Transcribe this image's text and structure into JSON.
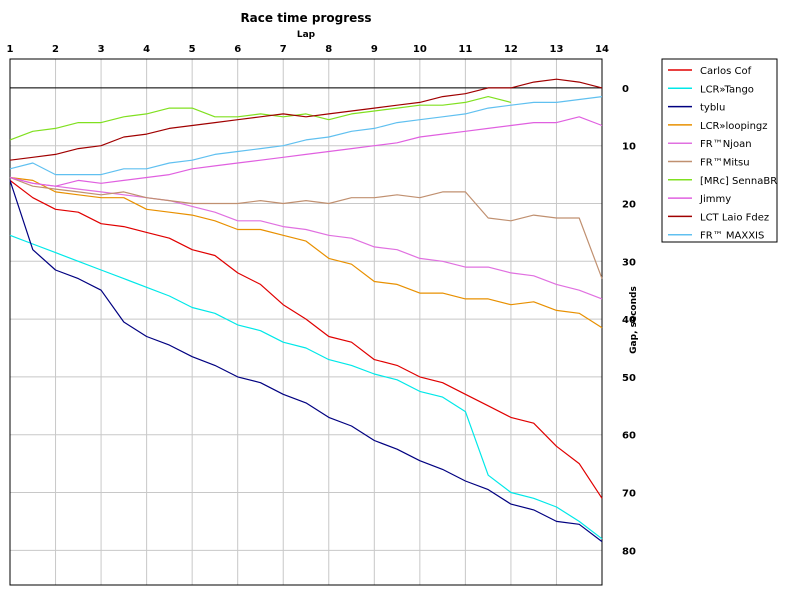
{
  "chart_data": {
    "type": "line",
    "title": "Race time progress",
    "xlabel": "Lap",
    "ylabel": "Gap, seconds",
    "xlim": [
      1,
      14
    ],
    "ylim": [
      -5,
      86
    ],
    "y_inverted": true,
    "x_ticks": [
      "1",
      "2",
      "3",
      "4",
      "5",
      "6",
      "7",
      "8",
      "9",
      "10",
      "11",
      "12",
      "13",
      "14"
    ],
    "y_ticks": [
      "0",
      "10",
      "20",
      "30",
      "40",
      "50",
      "60",
      "70",
      "80"
    ],
    "grid": true,
    "legend_position": "right",
    "series": [
      {
        "name": "Carlos Cof",
        "color": "#e00000",
        "x": [
          1,
          1.5,
          2,
          2.5,
          3,
          3.5,
          4,
          4.5,
          5,
          5.5,
          6,
          6.5,
          7,
          7.5,
          8,
          8.5,
          9,
          9.5,
          10,
          10.5,
          11,
          11.5,
          12,
          12.5,
          13,
          13.5,
          14
        ],
        "y": [
          16,
          19,
          21,
          21.5,
          23.5,
          24,
          25,
          26,
          28,
          29,
          32,
          34,
          37.5,
          40,
          43,
          44,
          47,
          48,
          50,
          51,
          53,
          55,
          57,
          58,
          62,
          65,
          71
        ]
      },
      {
        "name": "LCR»Tango",
        "color": "#00e8e8",
        "x": [
          1,
          1.5,
          2,
          2.5,
          3,
          3.5,
          4,
          4.5,
          5,
          5.5,
          6,
          6.5,
          7,
          7.5,
          8,
          8.5,
          9,
          9.5,
          10,
          10.5,
          11,
          11.5,
          12,
          12.5,
          13,
          13.5,
          14
        ],
        "y": [
          25.5,
          27,
          28.5,
          30,
          31.5,
          33,
          34.5,
          36,
          38,
          39,
          41,
          42,
          44,
          45,
          47,
          48,
          49.5,
          50.5,
          52.5,
          53.5,
          56,
          67,
          70,
          71,
          72.5,
          75,
          78
        ]
      },
      {
        "name": "tyblu",
        "color": "#000080",
        "x": [
          1,
          1.5,
          2,
          2.5,
          3,
          3.5,
          4,
          4.5,
          5,
          5.5,
          6,
          6.5,
          7,
          7.5,
          8,
          8.5,
          9,
          9.5,
          10,
          10.5,
          11,
          11.5,
          12,
          12.5,
          13,
          13.5,
          14
        ],
        "y": [
          16,
          28,
          31.5,
          33,
          35,
          40.5,
          43,
          44.5,
          46.5,
          48,
          50,
          51,
          53,
          54.5,
          57,
          58.5,
          61,
          62.5,
          64.5,
          66,
          68,
          69.5,
          72,
          73,
          75,
          75.5,
          78.5
        ]
      },
      {
        "name": "LCR»loopingz",
        "color": "#e89000",
        "x": [
          1,
          1.5,
          2,
          2.5,
          3,
          3.5,
          4,
          4.5,
          5,
          5.5,
          6,
          6.5,
          7,
          7.5,
          8,
          8.5,
          9,
          9.5,
          10,
          10.5,
          11,
          11.5,
          12,
          12.5,
          13,
          13.5,
          14
        ],
        "y": [
          15.5,
          16,
          18,
          18.5,
          19,
          19,
          21,
          21.5,
          22,
          23,
          24.5,
          24.5,
          25.5,
          26.5,
          29.5,
          30.5,
          33.5,
          34,
          35.5,
          35.5,
          36.5,
          36.5,
          37.5,
          37,
          38.5,
          39,
          41.5
        ]
      },
      {
        "name": "FR™Njoan",
        "color": "#e070e0",
        "x": [
          1,
          1.5,
          2,
          2.5,
          3,
          3.5,
          4,
          4.5,
          5,
          5.5,
          6,
          6.5,
          7,
          7.5,
          8,
          8.5,
          9,
          9.5,
          10,
          10.5,
          11,
          11.5,
          12,
          12.5,
          13,
          13.5,
          14
        ],
        "y": [
          15.5,
          16.5,
          17,
          17.5,
          18,
          18.5,
          19,
          19.5,
          20.5,
          21.5,
          23,
          23,
          24,
          24.5,
          25.5,
          26,
          27.5,
          28,
          29.5,
          30,
          31,
          31,
          32,
          32.5,
          34,
          35,
          36.5
        ]
      },
      {
        "name": "FR™Mitsu",
        "color": "#c09070",
        "x": [
          1,
          1.5,
          2,
          2.5,
          3,
          3.5,
          4,
          4.5,
          5,
          5.5,
          6,
          6.5,
          7,
          7.5,
          8,
          8.5,
          9,
          9.5,
          10,
          10.5,
          11,
          11.5,
          12,
          12.5,
          13,
          13.5,
          14
        ],
        "y": [
          15.5,
          17,
          17.5,
          18,
          18.5,
          18,
          19,
          19.5,
          20,
          20,
          20,
          19.5,
          20,
          19.5,
          20,
          19,
          19,
          18.5,
          19,
          18,
          18,
          22.5,
          23,
          22,
          22.5,
          22.5,
          33
        ]
      },
      {
        "name": "[MRc] SennaBR",
        "color": "#80e020",
        "x": [
          1,
          1.5,
          2,
          2.5,
          3,
          3.5,
          4,
          4.5,
          5,
          5.5,
          6,
          6.5,
          7,
          7.5,
          8,
          8.5,
          9,
          9.5,
          10,
          10.5,
          11,
          11.5,
          12
        ],
        "y": [
          9,
          7.5,
          7,
          6,
          6,
          5,
          4.5,
          3.5,
          3.5,
          5,
          5,
          4.5,
          5,
          4.5,
          5.5,
          4.5,
          4,
          3.5,
          3,
          3,
          2.5,
          1.5,
          2.5
        ]
      },
      {
        "name": "Jimmy",
        "color": "#e060e0",
        "x": [
          1,
          1.5,
          2,
          2.5,
          3,
          3.5,
          4,
          4.5,
          5,
          5.5,
          6,
          6.5,
          7,
          7.5,
          8,
          8.5,
          9,
          9.5,
          10,
          10.5,
          11,
          11.5,
          12,
          12.5,
          13,
          13.5,
          14
        ],
        "y": [
          15.5,
          16.5,
          17,
          16,
          16.5,
          16,
          15.5,
          15,
          14,
          13.5,
          13,
          12.5,
          12,
          11.5,
          11,
          10.5,
          10,
          9.5,
          8.5,
          8,
          7.5,
          7,
          6.5,
          6,
          6,
          5,
          6.5
        ]
      },
      {
        "name": "LCT Laio Fdez",
        "color": "#a00000",
        "x": [
          1,
          1.5,
          2,
          2.5,
          3,
          3.5,
          4,
          4.5,
          5,
          5.5,
          6,
          6.5,
          7,
          7.5,
          8,
          8.5,
          9,
          9.5,
          10,
          10.5,
          11,
          11.5,
          12,
          12.5,
          13,
          13.5,
          14
        ],
        "y": [
          12.5,
          12,
          11.5,
          10.5,
          10,
          8.5,
          8,
          7,
          6.5,
          6,
          5.5,
          5,
          4.5,
          5,
          4.5,
          4,
          3.5,
          3,
          2.5,
          1.5,
          1,
          0,
          0,
          -1,
          -1.5,
          -1,
          0
        ]
      },
      {
        "name": "FR™ MAXXIS",
        "color": "#60c0f0",
        "x": [
          1,
          1.5,
          2,
          2.5,
          3,
          3.5,
          4,
          4.5,
          5,
          5.5,
          6,
          6.5,
          7,
          7.5,
          8,
          8.5,
          9,
          9.5,
          10,
          10.5,
          11,
          11.5,
          12,
          12.5,
          13,
          13.5,
          14
        ],
        "y": [
          14,
          13,
          15,
          15,
          15,
          14,
          14,
          13,
          12.5,
          11.5,
          11,
          10.5,
          10,
          9,
          8.5,
          7.5,
          7,
          6,
          5.5,
          5,
          4.5,
          3.5,
          3,
          2.5,
          2.5,
          2,
          1.5
        ]
      }
    ]
  }
}
